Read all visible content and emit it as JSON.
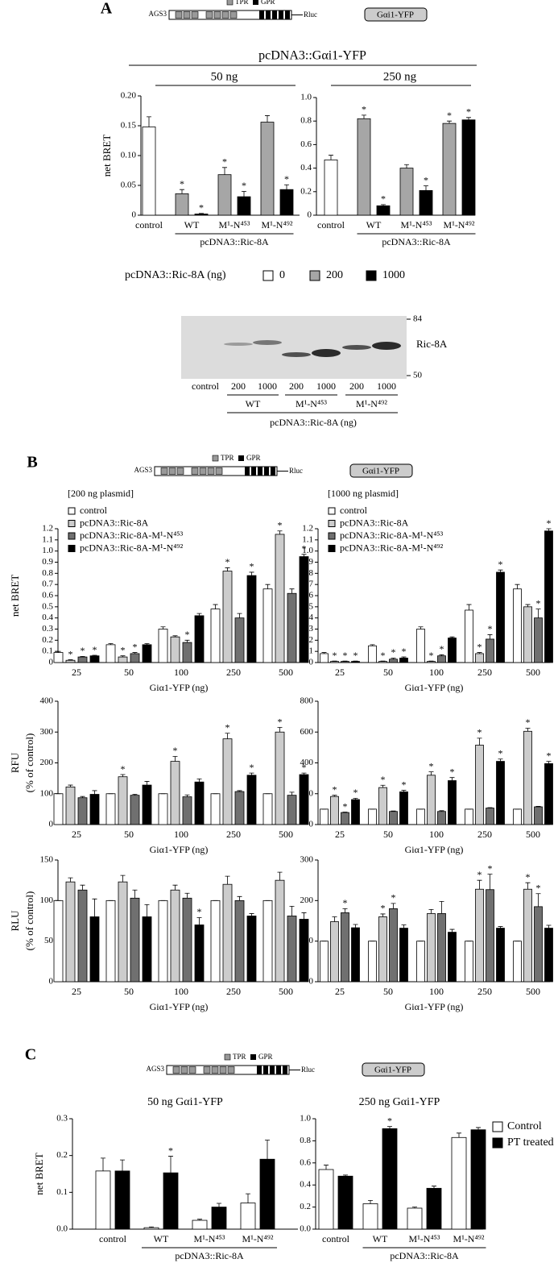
{
  "panels": [
    "A",
    "B",
    "C"
  ],
  "construct": {
    "name": "AGS3",
    "tpr": "TPR",
    "gpr": "GPR",
    "tag": "Rluc",
    "partner": "Gαi1-YFP"
  },
  "header_a": "pcDNA3::Gαi1-YFP",
  "star": "*",
  "blot": {
    "markers": [
      84,
      50
    ],
    "band_label": "Ric-8A",
    "lanes": [
      "control",
      "200",
      "1000",
      "200",
      "1000",
      "200",
      "1000"
    ],
    "groups": [
      "WT",
      "M¹-N⁴⁵³",
      "M¹-N⁴⁹²"
    ],
    "axis_label": "pcDNA3::Ric-8A (ng)"
  },
  "chart_data": [
    {
      "type": "bar",
      "title": "50 ng",
      "y_label": "net BRET",
      "group_label": "pcDNA3::Ric-8A",
      "categories": [
        "control",
        "WT",
        "M¹-N⁴⁵³",
        "M¹-N⁴⁹²"
      ],
      "ylim": [
        0,
        0.2
      ],
      "yticks": [
        0,
        0.05,
        {
          "value": 0.1,
          "label": "0.10"
        },
        0.15,
        {
          "value": 0.2,
          "label": "0.20"
        }
      ],
      "series": [
        {
          "color": "#ffffff",
          "values": [
            0.148,
            null,
            null,
            null
          ],
          "errors": [
            0.017,
            null,
            null,
            null
          ],
          "stars": [
            false,
            false,
            false,
            false
          ]
        },
        {
          "color": "#a6a6a6",
          "values": [
            null,
            0.036,
            0.068,
            0.156
          ],
          "errors": [
            null,
            0.007,
            0.012,
            0.011
          ],
          "stars": [
            false,
            true,
            true,
            false
          ]
        },
        {
          "color": "#000000",
          "values": [
            null,
            0.002,
            0.031,
            0.043
          ],
          "errors": [
            null,
            0.001,
            0.009,
            0.008
          ],
          "stars": [
            false,
            true,
            true,
            true
          ]
        }
      ]
    },
    {
      "type": "bar",
      "title": "250 ng",
      "group_label": "pcDNA3::Ric-8A",
      "legend_title": "pcDNA3::Ric-8A (ng)",
      "categories": [
        "control",
        "WT",
        "M¹-N⁴⁵³",
        "M¹-N⁴⁹²"
      ],
      "ylim": [
        0,
        1
      ],
      "yticks": [
        0,
        0.2,
        0.4,
        0.6,
        0.8,
        {
          "value": 1,
          "label": "1.0"
        }
      ],
      "series": [
        {
          "name": "0",
          "color": "#ffffff",
          "values": [
            0.47,
            null,
            null,
            null
          ],
          "errors": [
            0.04,
            null,
            null,
            null
          ],
          "stars": [
            false,
            false,
            false,
            false
          ]
        },
        {
          "name": "200",
          "color": "#a6a6a6",
          "values": [
            null,
            0.82,
            0.4,
            0.78
          ],
          "errors": [
            null,
            0.03,
            0.03,
            0.02
          ],
          "stars": [
            false,
            true,
            false,
            true
          ]
        },
        {
          "name": "1000",
          "color": "#000000",
          "values": [
            null,
            0.08,
            0.21,
            0.81
          ],
          "errors": [
            null,
            0.01,
            0.04,
            0.02
          ],
          "stars": [
            false,
            true,
            true,
            true
          ]
        }
      ]
    },
    {
      "type": "bar",
      "subtitle": "[200 ng plasmid]",
      "y_label": "net BRET",
      "x_label": "Giα1-YFP (ng)",
      "categories": [
        "25",
        "50",
        "100",
        "250",
        "500"
      ],
      "ylim": [
        0,
        1.2
      ],
      "yticks": [
        0,
        0.1,
        0.2,
        0.3,
        0.4,
        0.5,
        0.6,
        0.7,
        0.8,
        0.9,
        {
          "value": 1,
          "label": "1.0"
        },
        1.1,
        1.2
      ],
      "series": [
        {
          "name": "control",
          "color": "#ffffff",
          "values": [
            0.09,
            0.16,
            0.3,
            0.48,
            0.66
          ],
          "errors": [
            0.01,
            0.01,
            0.02,
            0.04,
            0.04
          ],
          "stars": [
            false,
            false,
            false,
            false,
            false
          ]
        },
        {
          "name": "pcDNA3::Ric-8A",
          "color": "#cccccc",
          "values": [
            0.02,
            0.05,
            0.23,
            0.82,
            1.15
          ],
          "errors": [
            0.005,
            0.01,
            0.01,
            0.03,
            0.03
          ],
          "stars": [
            true,
            true,
            false,
            true,
            true
          ]
        },
        {
          "name": "pcDNA3::Ric-8A-M¹-N⁴⁵³",
          "color": "#707070",
          "values": [
            0.05,
            0.08,
            0.18,
            0.4,
            0.62
          ],
          "errors": [
            0.005,
            0.01,
            0.02,
            0.04,
            0.04
          ],
          "stars": [
            true,
            true,
            true,
            false,
            false
          ]
        },
        {
          "name": "pcDNA3::Ric-8A-M¹-N⁴⁹²",
          "color": "#000000",
          "values": [
            0.06,
            0.16,
            0.42,
            0.78,
            0.95
          ],
          "errors": [
            0.005,
            0.01,
            0.02,
            0.03,
            0.02
          ],
          "stars": [
            true,
            false,
            false,
            true,
            true
          ]
        }
      ]
    },
    {
      "type": "bar",
      "subtitle": "[1000 ng plasmid]",
      "x_label": "Giα1-YFP (ng)",
      "categories": [
        "25",
        "50",
        "100",
        "250",
        "500"
      ],
      "ylim": [
        0,
        1.2
      ],
      "yticks": [
        0,
        0.1,
        0.2,
        0.3,
        0.4,
        0.5,
        0.6,
        0.7,
        0.8,
        0.9,
        {
          "value": 1,
          "label": "1.0"
        },
        1.1,
        1.2
      ],
      "series": [
        {
          "name": "control",
          "color": "#ffffff",
          "values": [
            0.08,
            0.15,
            0.3,
            0.47,
            0.66
          ],
          "errors": [
            0.01,
            0.01,
            0.02,
            0.05,
            0.04
          ],
          "stars": [
            false,
            false,
            false,
            false,
            false
          ]
        },
        {
          "name": "pcDNA3::Ric-8A",
          "color": "#cccccc",
          "values": [
            0.01,
            0.01,
            0.01,
            0.08,
            0.5
          ],
          "errors": [
            0.003,
            0.003,
            0.003,
            0.01,
            0.02
          ],
          "stars": [
            true,
            true,
            true,
            true,
            false
          ]
        },
        {
          "name": "pcDNA3::Ric-8A-M¹-N⁴⁵³",
          "color": "#707070",
          "values": [
            0.01,
            0.03,
            0.06,
            0.21,
            0.4
          ],
          "errors": [
            0.003,
            0.01,
            0.01,
            0.04,
            0.08
          ],
          "stars": [
            true,
            true,
            true,
            true,
            true
          ]
        },
        {
          "name": "pcDNA3::Ric-8A-M¹-N⁴⁹²",
          "color": "#000000",
          "values": [
            0.01,
            0.04,
            0.22,
            0.81,
            1.18
          ],
          "errors": [
            0.003,
            0.01,
            0.01,
            0.02,
            0.02
          ],
          "stars": [
            true,
            true,
            false,
            true,
            true
          ]
        }
      ]
    },
    {
      "type": "bar",
      "y_label": [
        "RFU",
        "(% of control)"
      ],
      "x_label": "Giα1-YFP (ng)",
      "categories": [
        "25",
        "50",
        "100",
        "250",
        "500"
      ],
      "ylim": [
        0,
        400
      ],
      "yticks": [
        0,
        100,
        200,
        300,
        400
      ],
      "series": [
        {
          "color": "#ffffff",
          "values": [
            100,
            100,
            100,
            100,
            100
          ],
          "errors": [
            0,
            0,
            0,
            0,
            0
          ],
          "stars": [
            false,
            false,
            false,
            false,
            false
          ]
        },
        {
          "color": "#cccccc",
          "values": [
            122,
            155,
            205,
            278,
            300
          ],
          "errors": [
            6,
            7,
            16,
            18,
            15
          ],
          "stars": [
            false,
            true,
            true,
            true,
            true
          ]
        },
        {
          "color": "#707070",
          "values": [
            87,
            95,
            90,
            107,
            95
          ],
          "errors": [
            4,
            3,
            6,
            3,
            10
          ],
          "stars": [
            false,
            false,
            false,
            false,
            false
          ]
        },
        {
          "color": "#000000",
          "values": [
            98,
            128,
            138,
            160,
            162
          ],
          "errors": [
            12,
            12,
            10,
            7,
            5
          ],
          "stars": [
            false,
            false,
            false,
            true,
            true
          ]
        }
      ]
    },
    {
      "type": "bar",
      "x_label": "Giα1-YFP (ng)",
      "categories": [
        "25",
        "50",
        "100",
        "250",
        "500"
      ],
      "ylim": [
        0,
        800
      ],
      "yticks": [
        0,
        200,
        400,
        600,
        800
      ],
      "series": [
        {
          "color": "#ffffff",
          "values": [
            100,
            100,
            100,
            100,
            100
          ],
          "errors": [
            0,
            0,
            0,
            0,
            0
          ],
          "stars": [
            false,
            false,
            false,
            false,
            false
          ]
        },
        {
          "color": "#cccccc",
          "values": [
            182,
            240,
            320,
            515,
            605
          ],
          "errors": [
            8,
            15,
            22,
            45,
            20
          ],
          "stars": [
            true,
            true,
            true,
            true,
            true
          ]
        },
        {
          "color": "#707070",
          "values": [
            78,
            85,
            85,
            107,
            115
          ],
          "errors": [
            3,
            3,
            5,
            3,
            3
          ],
          "stars": [
            true,
            false,
            false,
            false,
            false
          ]
        },
        {
          "color": "#000000",
          "values": [
            162,
            212,
            285,
            410,
            395
          ],
          "errors": [
            8,
            10,
            20,
            15,
            15
          ],
          "stars": [
            true,
            true,
            true,
            true,
            true
          ]
        }
      ]
    },
    {
      "type": "bar",
      "y_label": [
        "RLU",
        "(% of control)"
      ],
      "x_label": "Giα1-YFP (ng)",
      "categories": [
        "25",
        "50",
        "100",
        "250",
        "500"
      ],
      "ylim": [
        0,
        150
      ],
      "yticks": [
        0,
        50,
        100,
        150
      ],
      "series": [
        {
          "color": "#ffffff",
          "values": [
            100,
            100,
            100,
            100,
            100
          ],
          "errors": [
            0,
            0,
            0,
            0,
            0
          ],
          "stars": [
            false,
            false,
            false,
            false,
            false
          ]
        },
        {
          "color": "#cccccc",
          "values": [
            123,
            123,
            113,
            120,
            125
          ],
          "errors": [
            5,
            8,
            6,
            10,
            10
          ],
          "stars": [
            false,
            false,
            false,
            false,
            false
          ]
        },
        {
          "color": "#707070",
          "values": [
            113,
            103,
            103,
            100,
            81
          ],
          "errors": [
            6,
            10,
            6,
            5,
            12
          ],
          "stars": [
            false,
            false,
            false,
            false,
            false
          ]
        },
        {
          "color": "#000000",
          "values": [
            80,
            80,
            70,
            81,
            77
          ],
          "errors": [
            22,
            15,
            9,
            3,
            8
          ],
          "stars": [
            false,
            false,
            true,
            false,
            false
          ]
        }
      ]
    },
    {
      "type": "bar",
      "x_label": "Giα1-YFP (ng)",
      "categories": [
        "25",
        "50",
        "100",
        "250",
        "500"
      ],
      "ylim": [
        0,
        300
      ],
      "yticks": [
        0,
        100,
        200,
        300
      ],
      "series": [
        {
          "color": "#ffffff",
          "values": [
            100,
            100,
            100,
            100,
            100
          ],
          "errors": [
            0,
            0,
            0,
            0,
            0
          ],
          "stars": [
            false,
            false,
            false,
            false,
            false
          ]
        },
        {
          "color": "#cccccc",
          "values": [
            148,
            160,
            168,
            228,
            228
          ],
          "errors": [
            12,
            7,
            10,
            22,
            16
          ],
          "stars": [
            false,
            true,
            false,
            true,
            true
          ]
        },
        {
          "color": "#707070",
          "values": [
            170,
            180,
            168,
            227,
            185
          ],
          "errors": [
            10,
            13,
            30,
            38,
            32
          ],
          "stars": [
            true,
            true,
            false,
            true,
            true
          ]
        },
        {
          "color": "#000000",
          "values": [
            133,
            132,
            122,
            132,
            132
          ],
          "errors": [
            8,
            8,
            7,
            4,
            7
          ],
          "stars": [
            false,
            false,
            false,
            false,
            false
          ]
        }
      ]
    },
    {
      "type": "bar",
      "title": "50 ng Gαi1-YFP",
      "y_label": "net BRET",
      "group_label": "pcDNA3::Ric-8A",
      "categories": [
        "control",
        "WT",
        "M¹-N⁴⁵³",
        "M¹-N⁴⁹²"
      ],
      "ylim": [
        0,
        0.3
      ],
      "yticks": [
        {
          "value": 0,
          "label": "0.0"
        },
        0.1,
        0.2,
        0.3
      ],
      "series": [
        {
          "color": "#ffffff",
          "values": [
            0.158,
            0.004,
            0.024,
            0.071
          ],
          "errors": [
            0.035,
            0.002,
            0.003,
            0.025
          ],
          "stars": [
            false,
            false,
            false,
            false
          ]
        },
        {
          "color": "#000000",
          "values": [
            0.158,
            0.153,
            0.06,
            0.19
          ],
          "errors": [
            0.03,
            0.045,
            0.01,
            0.052
          ],
          "stars": [
            false,
            true,
            false,
            false
          ]
        }
      ]
    },
    {
      "type": "bar",
      "title": "250 ng Gαi1-YFP",
      "group_label": "pcDNA3::Ric-8A",
      "categories": [
        "control",
        "WT",
        "M¹-N⁴⁵³",
        "M¹-N⁴⁹²"
      ],
      "ylim": [
        0,
        1
      ],
      "yticks": [
        {
          "value": 0,
          "label": "0.0"
        },
        0.2,
        0.4,
        0.6,
        0.8,
        {
          "value": 1,
          "label": "1.0"
        }
      ],
      "series": [
        {
          "name": "Control",
          "color": "#ffffff",
          "values": [
            0.54,
            0.23,
            0.19,
            0.83
          ],
          "errors": [
            0.04,
            0.03,
            0.01,
            0.04
          ],
          "stars": [
            false,
            false,
            false,
            false
          ]
        },
        {
          "name": "PT treated",
          "color": "#000000",
          "values": [
            0.48,
            0.91,
            0.37,
            0.9
          ],
          "errors": [
            0.01,
            0.02,
            0.02,
            0.02
          ],
          "stars": [
            false,
            true,
            false,
            false
          ]
        }
      ]
    }
  ]
}
